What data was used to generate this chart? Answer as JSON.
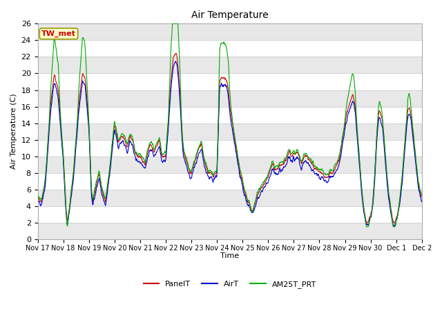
{
  "title": "Air Temperature",
  "ylabel": "Air Temperature (C)",
  "xlabel": "Time",
  "annotation": "TW_met",
  "ylim": [
    0,
    26
  ],
  "yticks": [
    0,
    2,
    4,
    6,
    8,
    10,
    12,
    14,
    16,
    18,
    20,
    22,
    24,
    26
  ],
  "legend_labels": [
    "PanelT",
    "AirT",
    "AM25T_PRT"
  ],
  "legend_colors": [
    "#cc0000",
    "#0000cc",
    "#00aa00"
  ],
  "fig_bg": "#ffffff",
  "plot_bg": "#ffffff",
  "annotation_fg": "#cc0000",
  "annotation_bg": "#ffffcc",
  "annotation_edge": "#999900",
  "num_days": 16,
  "num_points": 1500,
  "xtick_labels": [
    "Nov 17",
    "Nov 18",
    "Nov 19",
    "Nov 20",
    "Nov 21",
    "Nov 22",
    "Nov 23",
    "Nov 24",
    "Nov 25",
    "Nov 26",
    "Nov 27",
    "Nov 28",
    "Nov 29",
    "Nov 30",
    "Dec 1",
    "Dec 2"
  ],
  "figsize": [
    6.4,
    4.8
  ],
  "dpi": 100
}
